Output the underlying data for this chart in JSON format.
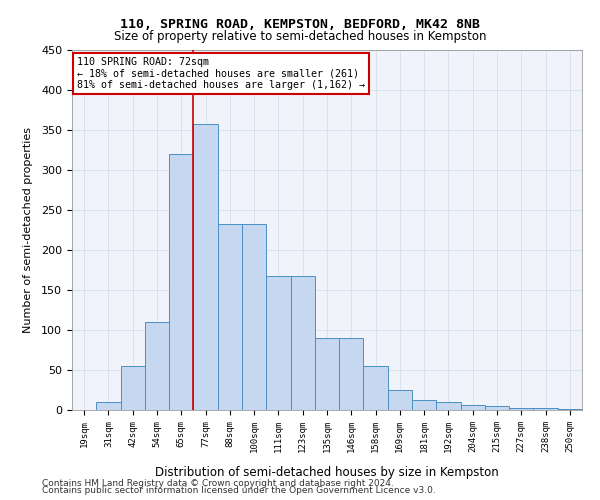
{
  "title1": "110, SPRING ROAD, KEMPSTON, BEDFORD, MK42 8NB",
  "title2": "Size of property relative to semi-detached houses in Kempston",
  "xlabel": "Distribution of semi-detached houses by size in Kempston",
  "ylabel": "Number of semi-detached properties",
  "categories": [
    "19sqm",
    "31sqm",
    "42sqm",
    "54sqm",
    "65sqm",
    "77sqm",
    "88sqm",
    "100sqm",
    "111sqm",
    "123sqm",
    "135sqm",
    "146sqm",
    "158sqm",
    "169sqm",
    "181sqm",
    "192sqm",
    "204sqm",
    "215sqm",
    "227sqm",
    "238sqm",
    "250sqm"
  ],
  "values": [
    0,
    10,
    55,
    110,
    320,
    358,
    233,
    233,
    167,
    167,
    90,
    90,
    55,
    25,
    12,
    10,
    6,
    5,
    3,
    2,
    1
  ],
  "bar_color": "#c5d8f0",
  "bar_edge_color": "#4a90c4",
  "property_size": "72sqm",
  "property_bin_index": 4,
  "vline_x": 4.5,
  "annotation_title": "110 SPRING ROAD: 72sqm",
  "annotation_line1": "← 18% of semi-detached houses are smaller (261)",
  "annotation_line2": "81% of semi-detached houses are larger (1,162) →",
  "annotation_color": "#cc0000",
  "ylim": [
    0,
    450
  ],
  "yticks": [
    0,
    50,
    100,
    150,
    200,
    250,
    300,
    350,
    400,
    450
  ],
  "footer1": "Contains HM Land Registry data © Crown copyright and database right 2024.",
  "footer2": "Contains public sector information licensed under the Open Government Licence v3.0.",
  "bg_color": "#f0f4fa",
  "grid_color": "#d0dce8"
}
